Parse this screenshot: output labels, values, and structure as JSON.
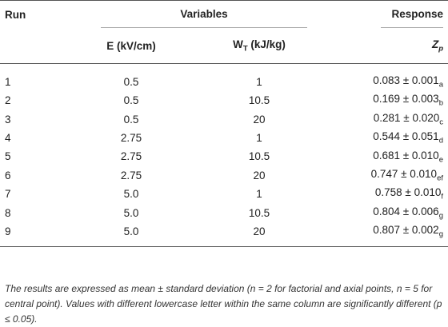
{
  "table": {
    "header": {
      "run": "Run",
      "variables": "Variables",
      "response": "Response",
      "e_label": "E (kV/cm)",
      "w_main": "W",
      "w_sub": "T",
      "w_unit": " (kJ/kg)",
      "z_main": "Z",
      "z_sub": "p"
    },
    "rows": [
      {
        "run": "1",
        "e": "0.5",
        "w": "1",
        "z": "0.083 ± 0.001",
        "letter": "a"
      },
      {
        "run": "2",
        "e": "0.5",
        "w": "10.5",
        "z": "0.169 ± 0.003",
        "letter": "b"
      },
      {
        "run": "3",
        "e": "0.5",
        "w": "20",
        "z": "0.281 ± 0.020",
        "letter": "c"
      },
      {
        "run": "4",
        "e": "2.75",
        "w": "1",
        "z": "0.544 ± 0.051",
        "letter": "d"
      },
      {
        "run": "5",
        "e": "2.75",
        "w": "10.5",
        "z": "0.681 ± 0.010",
        "letter": "e"
      },
      {
        "run": "6",
        "e": "2.75",
        "w": "20",
        "z": "0.747 ± 0.010",
        "letter": "ef"
      },
      {
        "run": "7",
        "e": "5.0",
        "w": "1",
        "z": "0.758 ± 0.010",
        "letter": "f"
      },
      {
        "run": "8",
        "e": "5.0",
        "w": "10.5",
        "z": "0.804 ± 0.006",
        "letter": "g"
      },
      {
        "run": "9",
        "e": "5.0",
        "w": "20",
        "z": "0.807 ± 0.002",
        "letter": "g"
      }
    ]
  },
  "footnote": "The results are expressed as mean ± standard deviation (n = 2 for factorial and axial points, n = 5 for central point). Values with different lowercase letter within the same column are significantly different (p ≤ 0.05)."
}
